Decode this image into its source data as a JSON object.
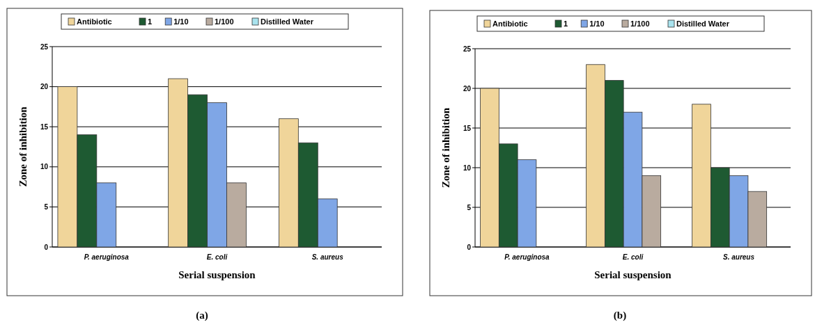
{
  "chart_data": [
    {
      "type": "bar",
      "xlabel": "Serial suspension",
      "ylabel": "Zone of inhibition",
      "categories": [
        "P. aeruginosa",
        "E. coli",
        "S. aureus"
      ],
      "series": [
        {
          "name": "Antibiotic",
          "color": "#f0d59a",
          "values": [
            20,
            21,
            16
          ]
        },
        {
          "name": "1",
          "color": "#1e5a32",
          "values": [
            14,
            19,
            13
          ]
        },
        {
          "name": "1/10",
          "color": "#7fa6e6",
          "values": [
            8,
            18,
            6
          ]
        },
        {
          "name": "1/100",
          "color": "#b9ab9f",
          "values": [
            0,
            8,
            0
          ]
        },
        {
          "name": "Distilled Water",
          "color": "#a9e3ee",
          "values": [
            0,
            0,
            0
          ]
        }
      ],
      "ylim": [
        0,
        25
      ],
      "yticks": [
        0,
        5,
        10,
        15,
        20,
        25
      ],
      "grid": "y",
      "legend": "top",
      "annotations": [
        "(a)"
      ]
    },
    {
      "type": "bar",
      "xlabel": "Serial suspension",
      "ylabel": "Zone of inhibition",
      "categories": [
        "P. aeruginosa",
        "E. coli",
        "S. aureus"
      ],
      "series": [
        {
          "name": "Antibiotic",
          "color": "#f0d59a",
          "values": [
            20,
            23,
            18
          ]
        },
        {
          "name": "1",
          "color": "#1e5a32",
          "values": [
            13,
            21,
            10
          ]
        },
        {
          "name": "1/10",
          "color": "#7fa6e6",
          "values": [
            11,
            17,
            9
          ]
        },
        {
          "name": "1/100",
          "color": "#b9ab9f",
          "values": [
            0,
            9,
            7
          ]
        },
        {
          "name": "Distilled Water",
          "color": "#a9e3ee",
          "values": [
            0,
            0,
            0
          ]
        }
      ],
      "ylim": [
        0,
        25
      ],
      "yticks": [
        0,
        5,
        10,
        15,
        20,
        25
      ],
      "grid": "y",
      "legend": "top",
      "annotations": [
        "(b)"
      ]
    }
  ]
}
